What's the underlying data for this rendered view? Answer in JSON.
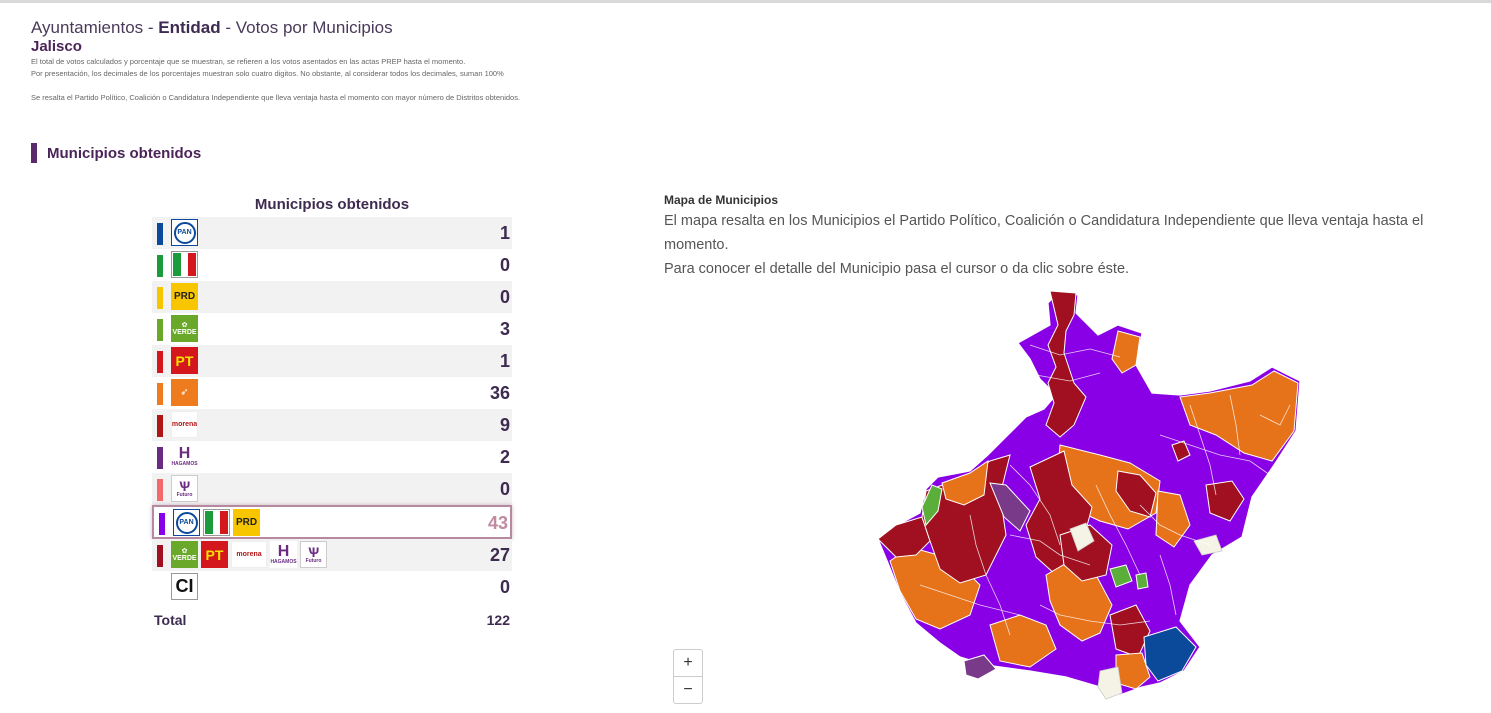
{
  "header": {
    "title_a": "Ayuntamientos - ",
    "title_b": "Entidad",
    "title_c": " - Votos por Municipios",
    "entity": "Jalisco",
    "note1": "El total de votos calculados y porcentaje que se muestran, se refieren a los votos asentados en las actas PREP hasta el momento.",
    "note2": "Por presentación, los decimales de los porcentajes muestran solo cuatro digitos. No obstante, al considerar todos los decimales, suman 100%",
    "note3": "Se resalta el Partido Político, Coalición o Candidatura Independiente que lleva ventaja hasta el momento con mayor número de Distritos obtenidos."
  },
  "section_title": "Municipios obtenidos",
  "table": {
    "title": "Municipios obtenidos",
    "rows": [
      {
        "party": "PAN",
        "color": "#0b4a9a",
        "value": "1"
      },
      {
        "party": "PRI",
        "color": "#1b9b3b",
        "value": "0"
      },
      {
        "party": "PRD",
        "color": "#f7c600",
        "value": "0"
      },
      {
        "party": "VERDE",
        "color": "#6aa82a",
        "value": "3"
      },
      {
        "party": "PT",
        "color": "#d3171c",
        "value": "1"
      },
      {
        "party": "MC",
        "color": "#ee7b1e",
        "value": "36"
      },
      {
        "party": "morena",
        "color": "#b01515",
        "value": "9"
      },
      {
        "party": "HAGAMOS",
        "color": "#6a2c82",
        "value": "2"
      },
      {
        "party": "FUTURO",
        "color": "#f26a6a",
        "value": "0"
      },
      {
        "party": "PAN-PRI-PRD",
        "color": "#8a00e6",
        "value": "43"
      },
      {
        "party": "VERDE-PT-MORENA-HAGAMOS-FUTURO",
        "color": "#a01020",
        "value": "27"
      },
      {
        "party": "CI",
        "color": "#ffffff",
        "value": "0"
      }
    ],
    "total_label": "Total",
    "total_value": "122"
  },
  "logo_text": {
    "pan": "PAN",
    "prd": "PRD",
    "verde": "VERDE",
    "pt": "PT",
    "morena": "morena",
    "hagamos": "H",
    "hagamos_sub": "HAGAMOS",
    "futuro": "Futuro",
    "ci": "CI"
  },
  "map": {
    "title": "Mapa de Municipios",
    "desc1": "El mapa resalta en los Municipios el Partido Político, Coalición o Candidatura Independiente que lleva ventaja hasta el",
    "desc2": "momento.",
    "desc3": "Para conocer el detalle del Municipio pasa el cursor o da clic sobre éste.",
    "zoom_in": "+",
    "zoom_out": "−",
    "colors": {
      "coalicion_pan_pri_prd": "#8a00e6",
      "mc": "#e6721a",
      "coalicion_verde_pt_morena": "#a01020",
      "morena": "#c4121f",
      "pan": "#0b4a9a",
      "verde": "#5cae3a",
      "hagamos": "#7a3a8a",
      "sin_dato": "#f5f3e6"
    }
  }
}
